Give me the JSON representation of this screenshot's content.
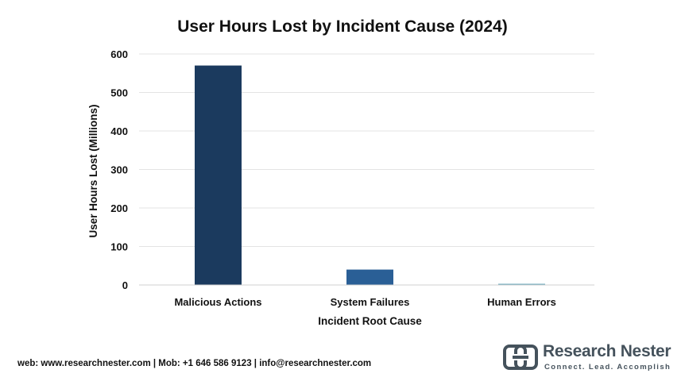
{
  "chart_data": {
    "type": "bar",
    "title": "User Hours Lost by Incident Cause (2024)",
    "xlabel": "Incident Root Cause",
    "ylabel": "User Hours Lost (Millions)",
    "categories": [
      "Malicious Actions",
      "System Failures",
      "Human Errors"
    ],
    "values": [
      570,
      40,
      3
    ],
    "colors": [
      "#1b3a5e",
      "#2a5f96",
      "#5fa3b8"
    ],
    "ylim": [
      0,
      600
    ],
    "yticks": [
      "0",
      "100",
      "200",
      "300",
      "400",
      "500",
      "600"
    ],
    "grid": true,
    "legend": "none"
  },
  "footer": {
    "contact": "web: www.researchnester.com | Mob: +1 646 586 9123 | info@researchnester.com"
  },
  "brand": {
    "name": "Research Nester",
    "tagline": "Connect. Lead. Accomplish",
    "logo_icon": "research-nester-logo-icon",
    "color": "#45525c"
  }
}
